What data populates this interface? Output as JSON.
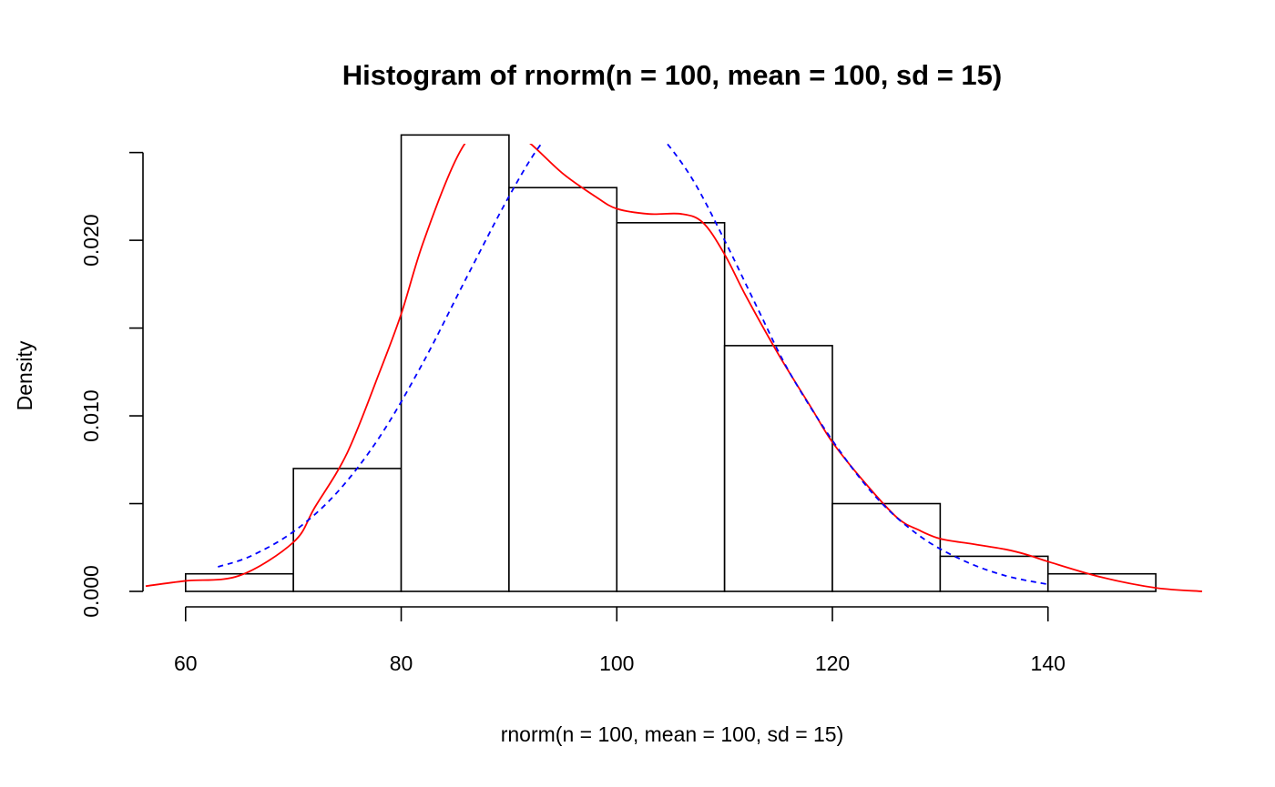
{
  "chart_data": {
    "type": "bar",
    "title": "Histogram of rnorm(n = 100, mean = 100, sd = 15)",
    "xlabel": "rnorm(n = 100, mean = 100, sd = 15)",
    "ylabel": "Density",
    "xlim": [
      56.3,
      154.3
    ],
    "ylim": [
      0,
      0.0255
    ],
    "x_ticks": [
      60,
      80,
      100,
      120,
      140
    ],
    "x_tick_labels": [
      "60",
      "80",
      "100",
      "120",
      "140"
    ],
    "y_ticks": [
      0,
      0.005,
      0.01,
      0.015,
      0.02,
      0.025
    ],
    "y_tick_labels": [
      "0.000",
      "",
      "0.010",
      "",
      "0.020",
      ""
    ],
    "bins": [
      {
        "x0": 60,
        "x1": 70,
        "density": 0.001
      },
      {
        "x0": 70,
        "x1": 80,
        "density": 0.007
      },
      {
        "x0": 80,
        "x1": 90,
        "density": 0.026
      },
      {
        "x0": 90,
        "x1": 100,
        "density": 0.023
      },
      {
        "x0": 100,
        "x1": 110,
        "density": 0.021
      },
      {
        "x0": 110,
        "x1": 120,
        "density": 0.014
      },
      {
        "x0": 120,
        "x1": 130,
        "density": 0.005
      },
      {
        "x0": 130,
        "x1": 140,
        "density": 0.002
      },
      {
        "x0": 140,
        "x1": 150,
        "density": 0.001
      }
    ],
    "series": [
      {
        "style": "solid",
        "color": "#ff0000",
        "x": [
          56.3,
          60,
          65,
          70,
          72,
          75,
          78,
          80,
          82,
          85,
          87,
          89,
          90,
          92,
          95,
          98,
          100,
          103,
          106,
          108,
          110,
          112,
          115,
          118,
          120,
          123,
          126,
          128,
          130,
          133,
          136,
          138,
          140,
          145,
          150,
          154.3
        ],
        "y": [
          0.0003,
          0.0006,
          0.0009,
          0.0028,
          0.0048,
          0.0079,
          0.0125,
          0.0158,
          0.0198,
          0.0245,
          0.0262,
          0.0262,
          0.0263,
          0.0255,
          0.0238,
          0.0225,
          0.0218,
          0.0215,
          0.0215,
          0.021,
          0.0192,
          0.0168,
          0.0135,
          0.0105,
          0.0085,
          0.0062,
          0.0042,
          0.0035,
          0.003,
          0.0027,
          0.0024,
          0.0021,
          0.0017,
          0.0008,
          0.0002,
          0.0
        ]
      },
      {
        "style": "dashed",
        "color": "#0000ff",
        "x": [
          63.0,
          66,
          70,
          74,
          78,
          82,
          86,
          90,
          93,
          95.8,
          101.8,
          104,
          107,
          110,
          113,
          116,
          120,
          124,
          128,
          132,
          136,
          140
        ],
        "y": [
          0.0014,
          0.002,
          0.0034,
          0.0056,
          0.0088,
          0.013,
          0.0178,
          0.0225,
          0.0255,
          0.0272,
          0.0272,
          0.026,
          0.0235,
          0.02,
          0.0162,
          0.0125,
          0.0086,
          0.0054,
          0.0032,
          0.0018,
          0.0009,
          0.0004
        ]
      }
    ]
  }
}
